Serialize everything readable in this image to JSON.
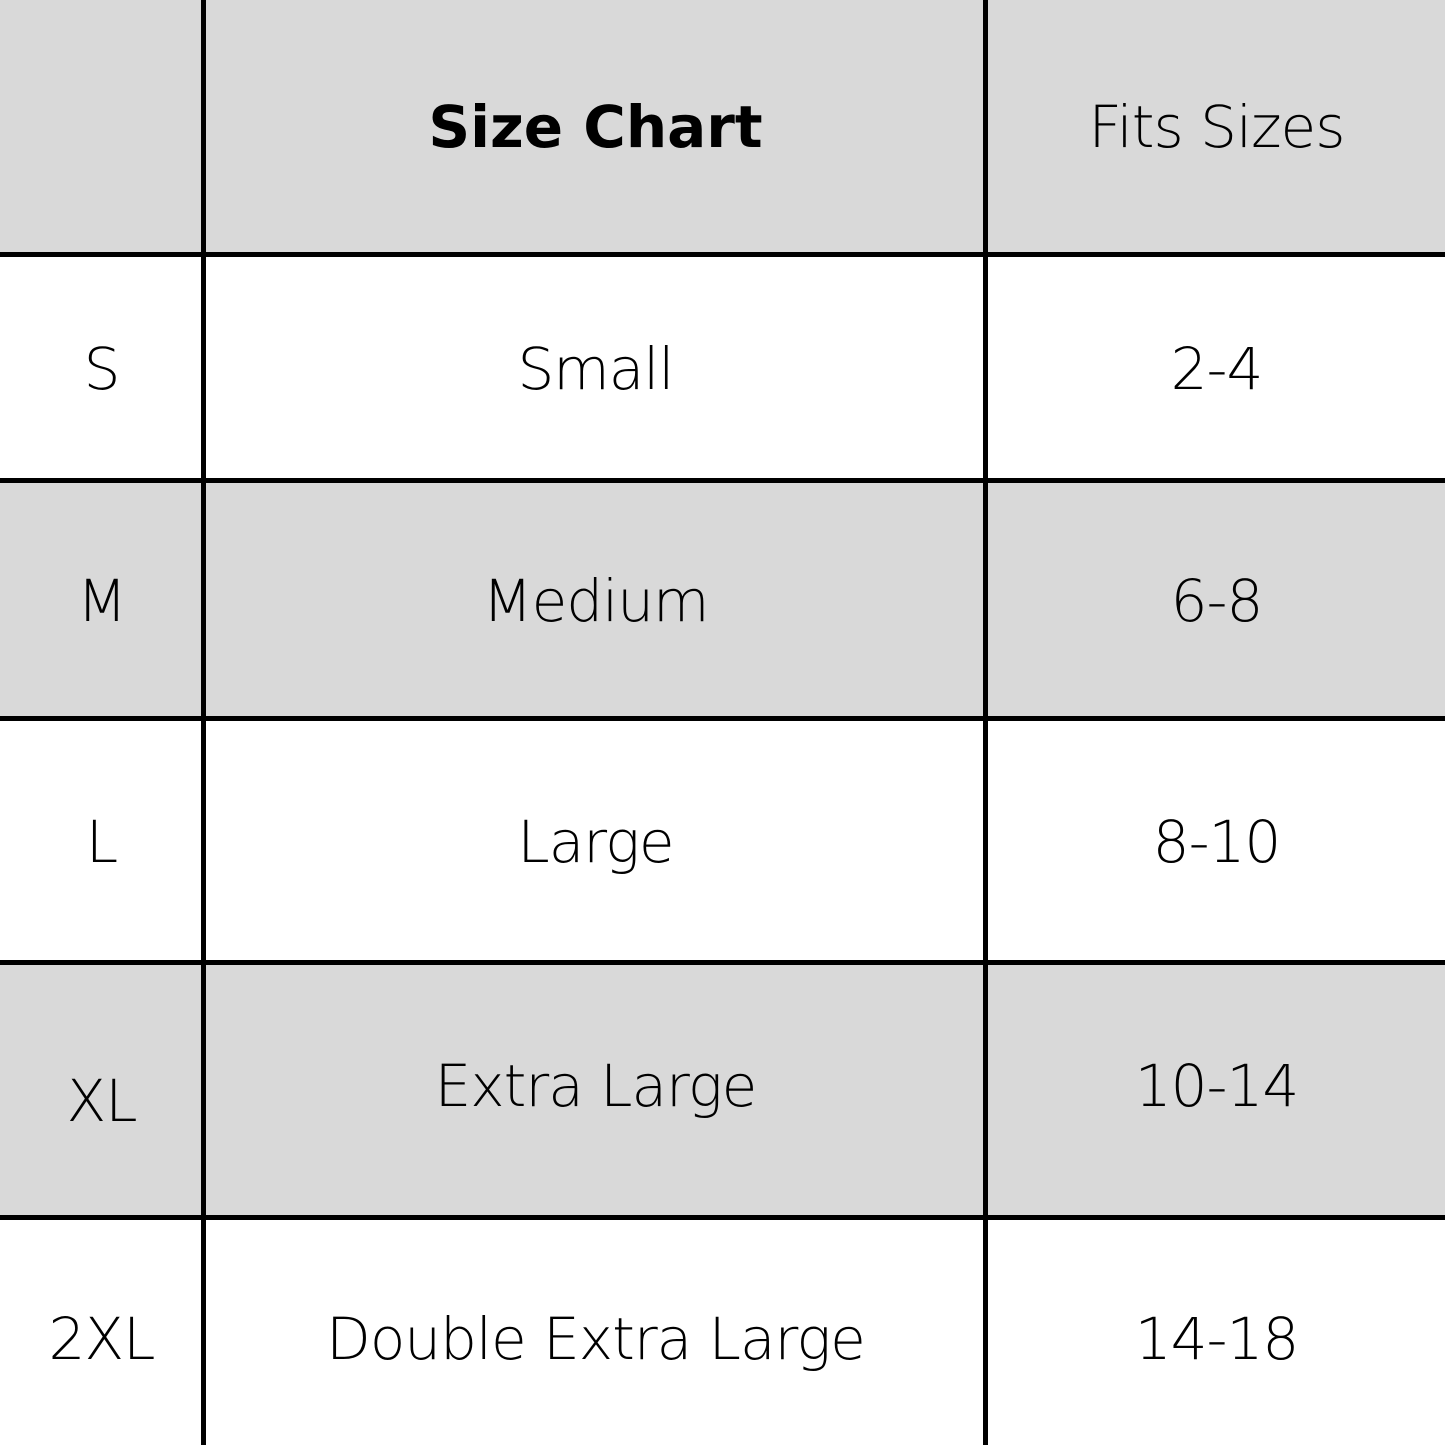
{
  "header": {
    "col0": "",
    "col1": "Size Chart",
    "col2": "Fits Sizes"
  },
  "rows": [
    {
      "code": "S",
      "name": "Small",
      "fits": "2-4"
    },
    {
      "code": "M",
      "name": "Medium",
      "fits": "6-8"
    },
    {
      "code": "L",
      "name": "Large",
      "fits": "8-10"
    },
    {
      "code": "XL",
      "name": "Extra Large",
      "fits": "10-14"
    },
    {
      "code": "2XL",
      "name": "Double Extra Large",
      "fits": "14-18"
    }
  ],
  "colors": {
    "shaded_row": "#d9d9d9",
    "border": "#000000"
  }
}
